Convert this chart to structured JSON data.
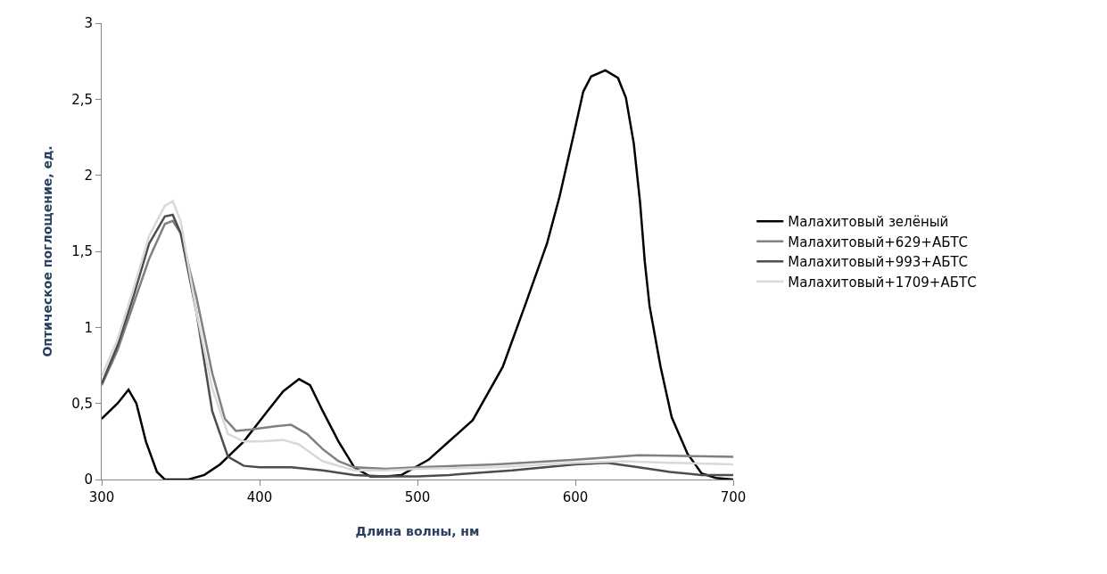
{
  "chart_data": {
    "type": "line",
    "xlabel": "Длина волны, нм",
    "ylabel": "Оптическое поглощение, ед.",
    "xlim": [
      300,
      700
    ],
    "xticks": [
      300,
      400,
      500,
      600,
      700
    ],
    "ylim": [
      0,
      3
    ],
    "yticks": [
      0,
      {
        "value": 0.5,
        "label": "0,5"
      },
      1,
      {
        "value": 1.5,
        "label": "1,5"
      },
      2,
      {
        "value": 2.5,
        "label": "2,5"
      },
      3
    ],
    "grid": false,
    "legend": "right",
    "marker": "none",
    "line_style": "solid",
    "series": [
      {
        "name": "Малахитовый зелёный",
        "color": "#000000",
        "x": [
          300,
          310,
          317,
          322,
          328,
          335,
          340,
          355,
          365,
          375,
          390,
          405,
          415,
          425,
          432,
          440,
          450,
          460,
          470,
          480,
          490,
          507,
          535,
          554,
          569,
          582,
          590,
          599,
          605,
          610,
          619,
          627,
          632,
          637,
          641,
          644,
          647,
          654,
          661,
          671,
          680,
          689,
          700
        ],
        "values": [
          0.4,
          0.5,
          0.59,
          0.5,
          0.25,
          0.05,
          0.0,
          0.0,
          0.03,
          0.1,
          0.25,
          0.45,
          0.58,
          0.66,
          0.62,
          0.45,
          0.25,
          0.08,
          0.02,
          0.02,
          0.03,
          0.13,
          0.39,
          0.74,
          1.17,
          1.55,
          1.86,
          2.27,
          2.55,
          2.65,
          2.69,
          2.64,
          2.51,
          2.21,
          1.82,
          1.43,
          1.14,
          0.74,
          0.41,
          0.17,
          0.04,
          0.01,
          0.0
        ]
      },
      {
        "name": "Малахитовый+629+АБТС",
        "color": "#808080",
        "x": [
          300,
          310,
          320,
          330,
          340,
          345,
          350,
          360,
          370,
          378,
          385,
          395,
          410,
          420,
          430,
          440,
          450,
          460,
          480,
          500,
          550,
          600,
          640,
          700
        ],
        "values": [
          0.62,
          0.85,
          1.15,
          1.45,
          1.68,
          1.7,
          1.62,
          1.2,
          0.7,
          0.4,
          0.32,
          0.33,
          0.35,
          0.36,
          0.3,
          0.2,
          0.12,
          0.08,
          0.07,
          0.08,
          0.1,
          0.13,
          0.16,
          0.15
        ]
      },
      {
        "name": "Малахитовый+993+АБТС",
        "color": "#4d4d4d",
        "x": [
          300,
          310,
          320,
          330,
          340,
          345,
          350,
          360,
          370,
          380,
          390,
          400,
          420,
          440,
          460,
          480,
          500,
          520,
          560,
          600,
          620,
          640,
          660,
          680,
          700
        ],
        "values": [
          0.63,
          0.88,
          1.2,
          1.55,
          1.73,
          1.74,
          1.62,
          1.1,
          0.45,
          0.15,
          0.09,
          0.08,
          0.08,
          0.06,
          0.03,
          0.02,
          0.02,
          0.03,
          0.06,
          0.1,
          0.11,
          0.08,
          0.05,
          0.03,
          0.03
        ]
      },
      {
        "name": "Малахитовый+1709+АБТС",
        "color": "#d9d9d9",
        "x": [
          300,
          310,
          320,
          330,
          340,
          345,
          350,
          360,
          370,
          380,
          390,
          400,
          415,
          425,
          440,
          460,
          480,
          500,
          550,
          600,
          630,
          660,
          700
        ],
        "values": [
          0.68,
          0.92,
          1.25,
          1.6,
          1.8,
          1.83,
          1.7,
          1.1,
          0.6,
          0.3,
          0.25,
          0.25,
          0.26,
          0.23,
          0.12,
          0.06,
          0.06,
          0.07,
          0.08,
          0.11,
          0.12,
          0.11,
          0.1
        ]
      }
    ]
  }
}
